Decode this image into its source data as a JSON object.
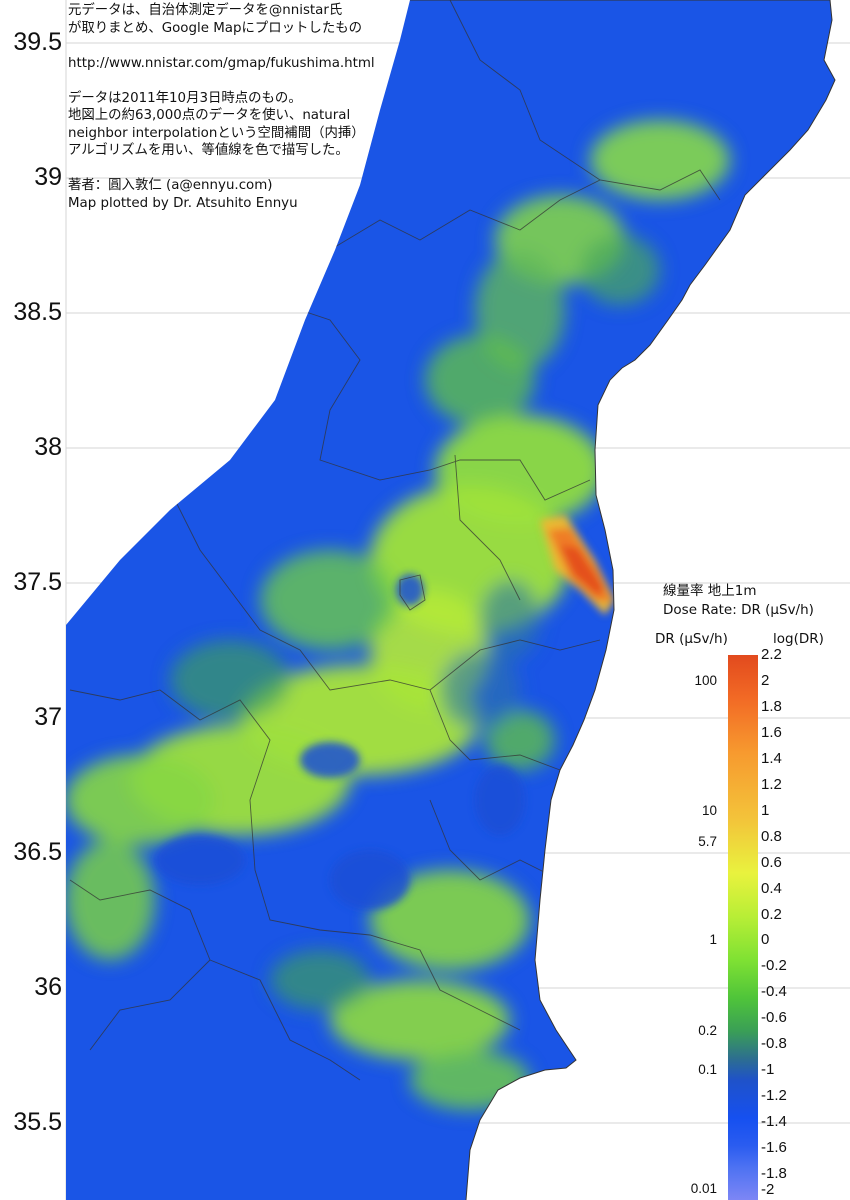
{
  "notes": [
    "元データは、自治体測定データを@nnistar氏",
    "が取りまとめ、Google Mapにプロットしたもの",
    "",
    "http://www.nnistar.com/gmap/fukushima.html",
    "",
    "データは2011年10月3日時点のもの。",
    "地図上の約63,000点のデータを使い、natural",
    "neighbor interpolationという空間補間（内挿）",
    "アルゴリズムを用い、等値線を色で描写した。",
    "",
    "著者：圓入敦仁 (a@ennyu.com)",
    "Map plotted by Dr. Atsuhito Ennyu"
  ],
  "latitude_ticks": [
    "39.5",
    "39",
    "38.5",
    "38",
    "37.5",
    "37",
    "36.5",
    "36",
    "35.5"
  ],
  "legend": {
    "title_line1": "線量率 地上1m",
    "title_line2": "Dose Rate: DR (μSv/h)",
    "col_dr": "DR (μSv/h)",
    "col_log": "log(DR)",
    "log_ticks": [
      "2.2",
      "2",
      "1.8",
      "1.6",
      "1.4",
      "1.2",
      "1",
      "0.8",
      "0.6",
      "0.4",
      "0.2",
      "0",
      "-0.2",
      "-0.4",
      "-0.6",
      "-0.8",
      "-1",
      "-1.2",
      "-1.4",
      "-1.6",
      "-1.8",
      "-2"
    ],
    "dr_ticks": [
      "100",
      "10",
      "5.7",
      "1",
      "0.2",
      "0.1",
      "0.01"
    ],
    "dr_tick_log_values": [
      2,
      1,
      0.756,
      0,
      -0.699,
      -1,
      -2
    ],
    "log_range": [
      -2.0,
      2.2
    ],
    "colors": {
      "high": "#e24a1e",
      "mid": "#e9f23e",
      "low": "#1650f0",
      "ocean": "#ffffff"
    }
  }
}
